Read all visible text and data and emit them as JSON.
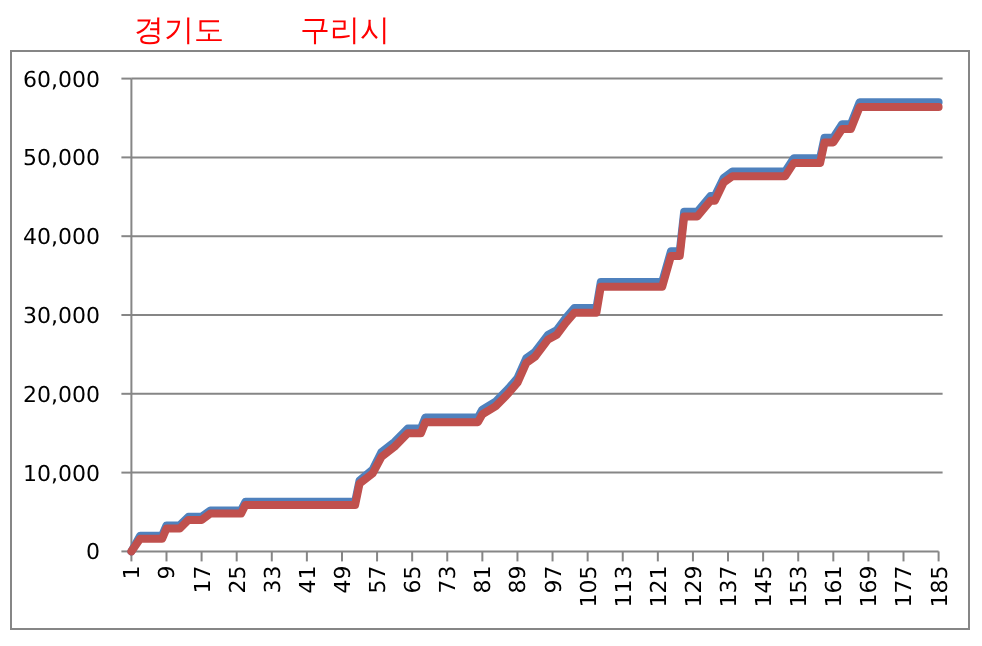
{
  "chart_data": {
    "type": "line",
    "title": "경기도",
    "subtitle": "구리시",
    "xlim": [
      1,
      185
    ],
    "xticks": [
      1,
      9,
      17,
      25,
      33,
      41,
      49,
      57,
      65,
      73,
      81,
      89,
      97,
      105,
      113,
      121,
      129,
      137,
      145,
      153,
      161,
      169,
      177,
      185
    ],
    "ylim": [
      0,
      60000
    ],
    "yticks": [
      {
        "value": 0,
        "label": "0"
      },
      {
        "value": 10000,
        "label": "10,000"
      },
      {
        "value": 20000,
        "label": "20,000"
      },
      {
        "value": 30000,
        "label": "30,000"
      },
      {
        "value": 40000,
        "label": "40,000"
      },
      {
        "value": 50000,
        "label": "50,000"
      },
      {
        "value": 60000,
        "label": "60,000"
      }
    ],
    "grid": "y",
    "marker": "none",
    "line_style": "solid",
    "series": [
      {
        "color": "#4f81bd",
        "x": [
          1,
          3,
          8,
          9,
          12,
          14,
          17,
          19,
          26,
          27,
          52,
          53,
          56,
          58,
          61,
          64,
          67,
          68,
          80,
          81,
          84,
          87,
          89,
          91,
          93,
          96,
          98,
          100,
          102,
          107,
          108,
          122,
          124,
          126,
          127,
          130,
          133,
          134,
          136,
          138,
          150,
          152,
          158,
          159,
          161,
          163,
          165,
          167,
          185
        ],
        "values": [
          0,
          2000,
          2000,
          3300,
          3300,
          4400,
          4400,
          5200,
          5200,
          6300,
          6300,
          9000,
          10400,
          12600,
          13900,
          15600,
          15600,
          17000,
          17000,
          18000,
          19000,
          20700,
          22000,
          24500,
          25300,
          27500,
          28100,
          29600,
          30900,
          30900,
          34200,
          34200,
          38100,
          38100,
          43100,
          43100,
          45100,
          45100,
          47400,
          48200,
          48200,
          49900,
          49900,
          52500,
          52500,
          54200,
          54200,
          57000,
          57000
        ]
      },
      {
        "color": "#c0504d",
        "x": [
          1,
          3,
          8,
          9,
          12,
          14,
          17,
          19,
          26,
          27,
          52,
          53,
          56,
          58,
          61,
          64,
          67,
          68,
          80,
          81,
          84,
          87,
          89,
          91,
          93,
          96,
          98,
          100,
          102,
          107,
          108,
          122,
          124,
          126,
          127,
          130,
          133,
          134,
          136,
          138,
          150,
          152,
          158,
          159,
          161,
          163,
          165,
          167,
          185
        ],
        "values": [
          0,
          1600,
          1600,
          2900,
          2900,
          4000,
          4000,
          4800,
          4800,
          5900,
          5900,
          8600,
          9900,
          12000,
          13300,
          15000,
          15000,
          16400,
          16400,
          17400,
          18400,
          20100,
          21400,
          23900,
          24700,
          26900,
          27500,
          29000,
          30300,
          30300,
          33600,
          33600,
          37500,
          37500,
          42500,
          42500,
          44500,
          44500,
          46800,
          47600,
          47600,
          49300,
          49300,
          51900,
          51900,
          53600,
          53600,
          56400,
          56400
        ]
      }
    ]
  }
}
